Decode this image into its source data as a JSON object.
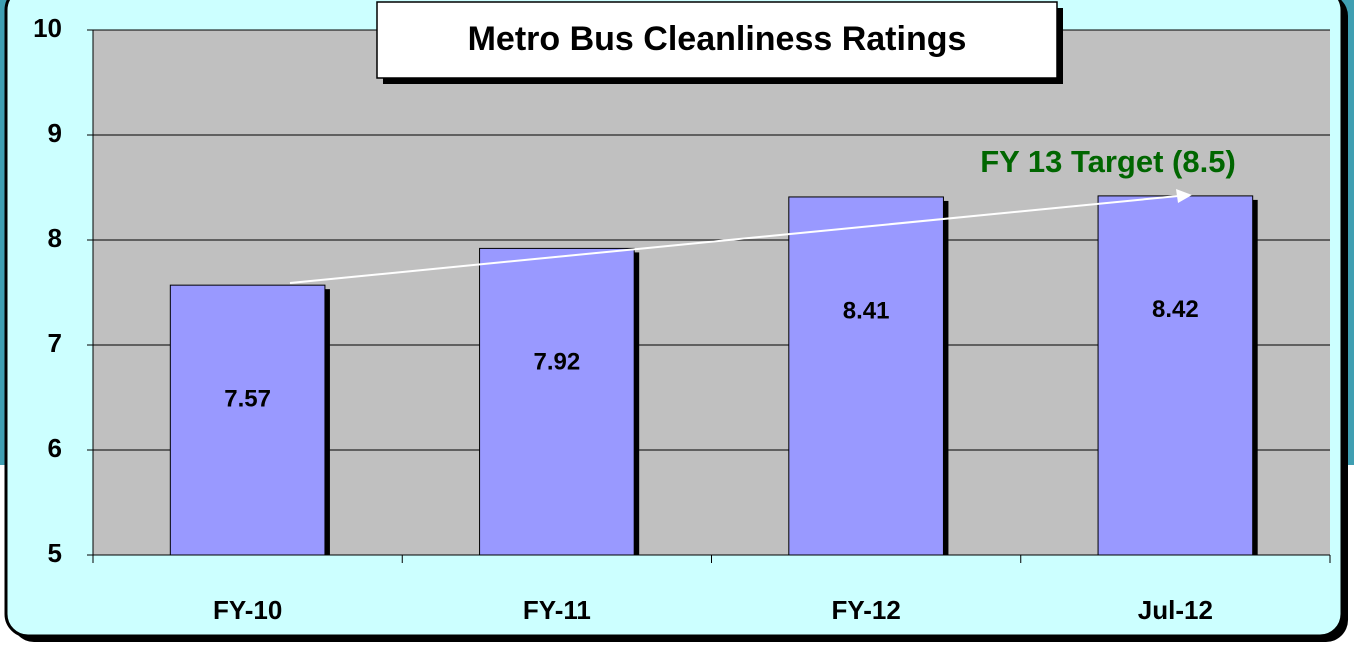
{
  "chart_data": {
    "type": "bar",
    "title": "Metro Bus Cleanliness Ratings",
    "categories": [
      "FY-10",
      "FY-11",
      "FY-12",
      "Jul-12"
    ],
    "values": [
      7.57,
      7.92,
      8.41,
      8.42
    ],
    "color": "#9999ff",
    "ylim": [
      5,
      10
    ],
    "yticks": [
      5,
      6,
      7,
      8,
      9,
      10
    ],
    "grid": true,
    "annotations": [
      "FY 13 Target (8.5)"
    ]
  }
}
